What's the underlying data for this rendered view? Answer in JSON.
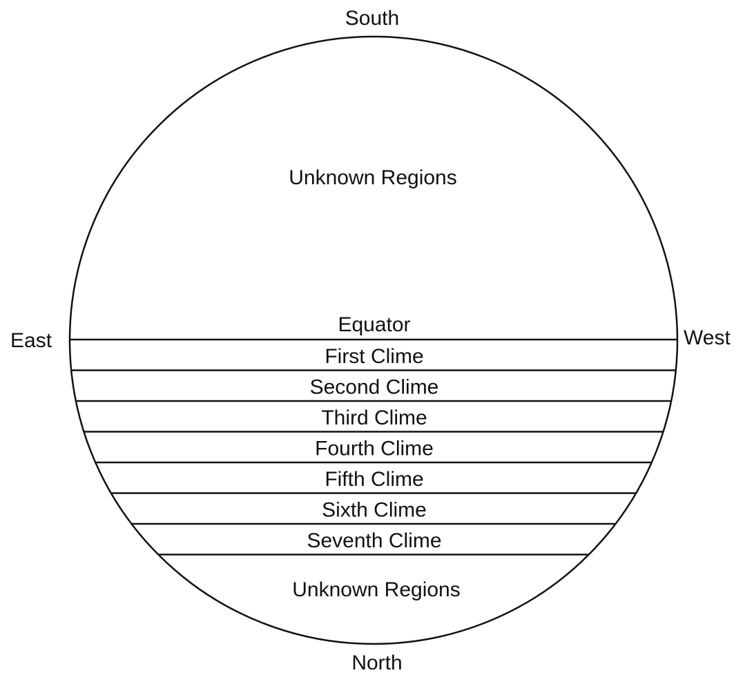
{
  "directions": {
    "top": "South",
    "bottom": "North",
    "left": "East",
    "right": "West"
  },
  "regions": {
    "upper": "Unknown Regions",
    "lower": "Unknown Regions"
  },
  "equator_label": "Equator",
  "climes": [
    "First Clime",
    "Second Clime",
    "Third Clime",
    "Fourth Clime",
    "Fifth Clime",
    "Sixth Clime",
    "Seventh Clime"
  ]
}
